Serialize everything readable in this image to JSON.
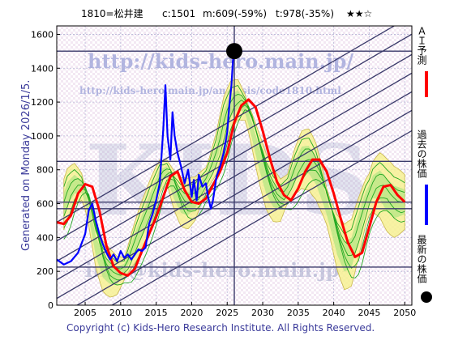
{
  "header": {
    "title": "1810=松井建",
    "current": "c:1501",
    "min": "m:609(-59%)",
    "target": "t:978(-35%)",
    "rating": "★★☆"
  },
  "legend": {
    "forecast_label": "ＡＩ予測",
    "past_label": "過去の株価",
    "latest_label": "最新の株価",
    "forecast_color": "#ff0000",
    "past_color": "#0000ff",
    "latest_color": "#000000"
  },
  "watermarks": {
    "big": "KIDS",
    "url": "http://kids-hero.main.jp/",
    "analysis_url": "http://kids-hero.main.jp/analysis/code1810.html",
    "mail": "info@kids-hero.main.jp"
  },
  "generated": "Generated on Monday 2026/1/5.",
  "copyright": "Copyright (c) Kids-Hero Research Institute. All Rights Reserved.",
  "chart_data": {
    "type": "line",
    "xlim": [
      2001,
      2051
    ],
    "ylim": [
      0,
      1650
    ],
    "x_ticks": [
      2005,
      2010,
      2015,
      2020,
      2025,
      2030,
      2035,
      2040,
      2045,
      2050
    ],
    "y_ticks": [
      0,
      200,
      400,
      600,
      800,
      1000,
      1200,
      1400,
      1600
    ],
    "grid": true,
    "horizontal_levels": [
      1501,
      850,
      609,
      570,
      225
    ],
    "latest_point": {
      "x": 2026.0,
      "y": 1501
    },
    "series": [
      {
        "name": "ＡＩ予測",
        "color": "#ff0000",
        "points": [
          [
            2001,
            490
          ],
          [
            2002,
            480
          ],
          [
            2003,
            530
          ],
          [
            2004,
            660
          ],
          [
            2005,
            715
          ],
          [
            2006,
            700
          ],
          [
            2007,
            560
          ],
          [
            2008,
            350
          ],
          [
            2009,
            230
          ],
          [
            2010,
            190
          ],
          [
            2011,
            175
          ],
          [
            2012,
            215
          ],
          [
            2013,
            320
          ],
          [
            2014,
            420
          ],
          [
            2015,
            520
          ],
          [
            2016,
            640
          ],
          [
            2017,
            760
          ],
          [
            2018,
            790
          ],
          [
            2019,
            680
          ],
          [
            2020,
            610
          ],
          [
            2021,
            600
          ],
          [
            2022,
            630
          ],
          [
            2023,
            710
          ],
          [
            2024,
            790
          ],
          [
            2025,
            900
          ],
          [
            2026,
            1080
          ],
          [
            2027,
            1180
          ],
          [
            2028,
            1215
          ],
          [
            2029,
            1170
          ],
          [
            2030,
            1030
          ],
          [
            2031,
            870
          ],
          [
            2032,
            730
          ],
          [
            2033,
            650
          ],
          [
            2034,
            620
          ],
          [
            2035,
            690
          ],
          [
            2036,
            790
          ],
          [
            2037,
            860
          ],
          [
            2038,
            860
          ],
          [
            2039,
            790
          ],
          [
            2040,
            660
          ],
          [
            2041,
            510
          ],
          [
            2042,
            370
          ],
          [
            2043,
            285
          ],
          [
            2044,
            310
          ],
          [
            2045,
            460
          ],
          [
            2046,
            610
          ],
          [
            2047,
            700
          ],
          [
            2048,
            710
          ],
          [
            2049,
            650
          ],
          [
            2050,
            610
          ]
        ]
      },
      {
        "name": "過去の株価",
        "color": "#0000ff",
        "points": [
          [
            2001,
            270
          ],
          [
            2002,
            240
          ],
          [
            2003,
            260
          ],
          [
            2004,
            310
          ],
          [
            2005,
            420
          ],
          [
            2005.5,
            560
          ],
          [
            2006,
            600
          ],
          [
            2006.5,
            500
          ],
          [
            2007,
            420
          ],
          [
            2007.5,
            360
          ],
          [
            2008,
            310
          ],
          [
            2008.5,
            270
          ],
          [
            2009,
            300
          ],
          [
            2009.5,
            260
          ],
          [
            2010,
            320
          ],
          [
            2010.5,
            280
          ],
          [
            2011,
            300
          ],
          [
            2011.5,
            270
          ],
          [
            2012,
            300
          ],
          [
            2012.5,
            330
          ],
          [
            2013,
            320
          ],
          [
            2013.5,
            340
          ],
          [
            2014,
            480
          ],
          [
            2014.5,
            540
          ],
          [
            2015,
            620
          ],
          [
            2015.5,
            720
          ],
          [
            2016,
            1040
          ],
          [
            2016.3,
            1300
          ],
          [
            2016.6,
            1000
          ],
          [
            2017,
            860
          ],
          [
            2017.3,
            1140
          ],
          [
            2017.6,
            1000
          ],
          [
            2018,
            900
          ],
          [
            2018.5,
            820
          ],
          [
            2019,
            720
          ],
          [
            2019.5,
            800
          ],
          [
            2020,
            640
          ],
          [
            2020.3,
            740
          ],
          [
            2020.7,
            620
          ],
          [
            2021,
            770
          ],
          [
            2021.5,
            700
          ],
          [
            2022,
            720
          ],
          [
            2022.3,
            640
          ],
          [
            2022.7,
            570
          ],
          [
            2023,
            620
          ],
          [
            2023.5,
            760
          ],
          [
            2024,
            820
          ],
          [
            2024.5,
            900
          ],
          [
            2025,
            1020
          ],
          [
            2025.3,
            1180
          ],
          [
            2025.6,
            1300
          ],
          [
            2025.8,
            1440
          ],
          [
            2026,
            1501
          ]
        ]
      }
    ]
  }
}
